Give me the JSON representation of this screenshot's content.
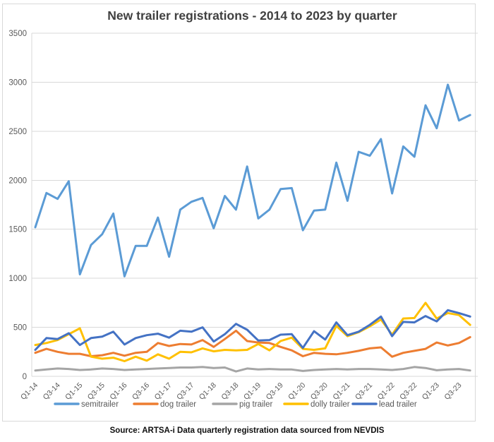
{
  "chart_data": {
    "type": "line",
    "title": "New trailer registrations - 2014 to 2023 by quarter",
    "source": "Source: ARTSA-i Data quarterly registration data sourced from NEVDIS",
    "xlabel": "",
    "ylabel": "",
    "ylim": [
      0,
      3500
    ],
    "y_ticks": [
      0,
      500,
      1000,
      1500,
      2000,
      2500,
      3000,
      3500
    ],
    "grid": true,
    "legend_position": "bottom",
    "x_tick_every": 2,
    "categories": [
      "Q1-14",
      "Q2-14",
      "Q3-14",
      "Q4-14",
      "Q1-15",
      "Q2-15",
      "Q3-15",
      "Q4-15",
      "Q1-16",
      "Q2-16",
      "Q3-16",
      "Q4-16",
      "Q1-17",
      "Q2-17",
      "Q3-17",
      "Q4-17",
      "Q1-18",
      "Q2-18",
      "Q3-18",
      "Q4-18",
      "Q1-19",
      "Q2-19",
      "Q3-19",
      "Q4-19",
      "Q1-20",
      "Q2-20",
      "Q3-20",
      "Q4-20",
      "Q1-21",
      "Q2-21",
      "Q3-21",
      "Q4-21",
      "Q1-22",
      "Q2-22",
      "Q3-22",
      "Q4-22",
      "Q1-23",
      "Q2-23",
      "Q3-23",
      "Q4-23"
    ],
    "series": [
      {
        "name": "semitrailer",
        "color": "#5B9BD5",
        "values": [
          1520,
          1870,
          1810,
          1990,
          1040,
          1340,
          1450,
          1660,
          1020,
          1330,
          1330,
          1620,
          1220,
          1700,
          1780,
          1820,
          1510,
          1840,
          1700,
          2140,
          1610,
          1700,
          1910,
          1920,
          1490,
          1690,
          1700,
          2180,
          1790,
          2290,
          2250,
          2420,
          1865,
          2345,
          2240,
          2765,
          2530,
          2975,
          2610,
          2665
        ]
      },
      {
        "name": "dog trailer",
        "color": "#ED7D31",
        "values": [
          240,
          280,
          250,
          230,
          230,
          205,
          215,
          240,
          210,
          240,
          250,
          340,
          310,
          330,
          325,
          370,
          300,
          380,
          465,
          360,
          345,
          340,
          300,
          265,
          205,
          240,
          230,
          225,
          240,
          260,
          285,
          295,
          200,
          240,
          260,
          280,
          345,
          315,
          340,
          400
        ]
      },
      {
        "name": "pig trailer",
        "color": "#A5A5A5",
        "values": [
          60,
          70,
          80,
          75,
          65,
          70,
          80,
          75,
          65,
          70,
          75,
          80,
          85,
          90,
          90,
          95,
          85,
          90,
          50,
          80,
          70,
          75,
          70,
          70,
          55,
          65,
          70,
          75,
          70,
          75,
          75,
          70,
          65,
          75,
          95,
          85,
          62,
          70,
          75,
          60
        ]
      },
      {
        "name": "dolly trailer",
        "color": "#FFC000",
        "values": [
          320,
          340,
          370,
          430,
          490,
          200,
          180,
          190,
          155,
          200,
          160,
          225,
          180,
          250,
          245,
          285,
          255,
          270,
          265,
          270,
          330,
          265,
          360,
          395,
          280,
          270,
          285,
          515,
          410,
          450,
          510,
          580,
          425,
          590,
          595,
          750,
          590,
          645,
          625,
          525
        ]
      },
      {
        "name": "lead trailer",
        "color": "#4472C4",
        "values": [
          270,
          390,
          380,
          440,
          320,
          390,
          405,
          455,
          325,
          390,
          420,
          435,
          395,
          465,
          455,
          500,
          355,
          430,
          535,
          475,
          365,
          370,
          425,
          430,
          290,
          460,
          375,
          550,
          420,
          455,
          525,
          610,
          410,
          555,
          550,
          615,
          560,
          675,
          645,
          610
        ]
      }
    ],
    "style": {
      "grid_color": "#D9D9D9",
      "tick_label_color": "#595959",
      "title_color": "#404040"
    }
  }
}
